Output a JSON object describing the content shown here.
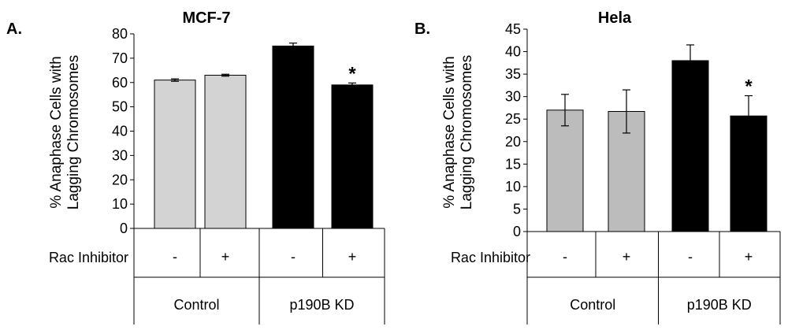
{
  "chart_data": [
    {
      "type": "bar",
      "panel": "A.",
      "title": "MCF-7",
      "ylabel": [
        "% Anaphase Cells with",
        "Lagging Chromosomes"
      ],
      "ylim": [
        0,
        80
      ],
      "yticks": [
        0,
        10,
        20,
        30,
        40,
        50,
        60,
        70,
        80
      ],
      "treatment_label": "Rac Inhibitor",
      "categories": [
        "-",
        "+",
        "-",
        "+"
      ],
      "groups": [
        {
          "label": "Control",
          "bars": [
            0,
            1
          ]
        },
        {
          "label": "p190B KD",
          "bars": [
            2,
            3
          ]
        }
      ],
      "values": [
        61,
        63,
        75,
        59
      ],
      "errors": [
        0.5,
        0.4,
        1.2,
        0.8
      ],
      "colors": [
        "#d3d3d3",
        "#d3d3d3",
        "#000000",
        "#000000"
      ],
      "significance": [
        "",
        "",
        "",
        "*"
      ]
    },
    {
      "type": "bar",
      "panel": "B.",
      "title": "Hela",
      "ylabel": [
        "% Anaphase Cells with",
        "Lagging Chromosomes"
      ],
      "ylim": [
        0,
        45
      ],
      "yticks": [
        0,
        5,
        10,
        15,
        20,
        25,
        30,
        35,
        40,
        45
      ],
      "treatment_label": "Rac Inhibitor",
      "categories": [
        "-",
        "+",
        "-",
        "+"
      ],
      "groups": [
        {
          "label": "Control",
          "bars": [
            0,
            1
          ]
        },
        {
          "label": "p190B KD",
          "bars": [
            2,
            3
          ]
        }
      ],
      "values": [
        27,
        26.7,
        38,
        25.7
      ],
      "errors": [
        3.5,
        4.8,
        3.5,
        4.5
      ],
      "colors": [
        "#bcbcbc",
        "#bcbcbc",
        "#000000",
        "#000000"
      ],
      "significance": [
        "",
        "",
        "",
        "*"
      ]
    }
  ]
}
